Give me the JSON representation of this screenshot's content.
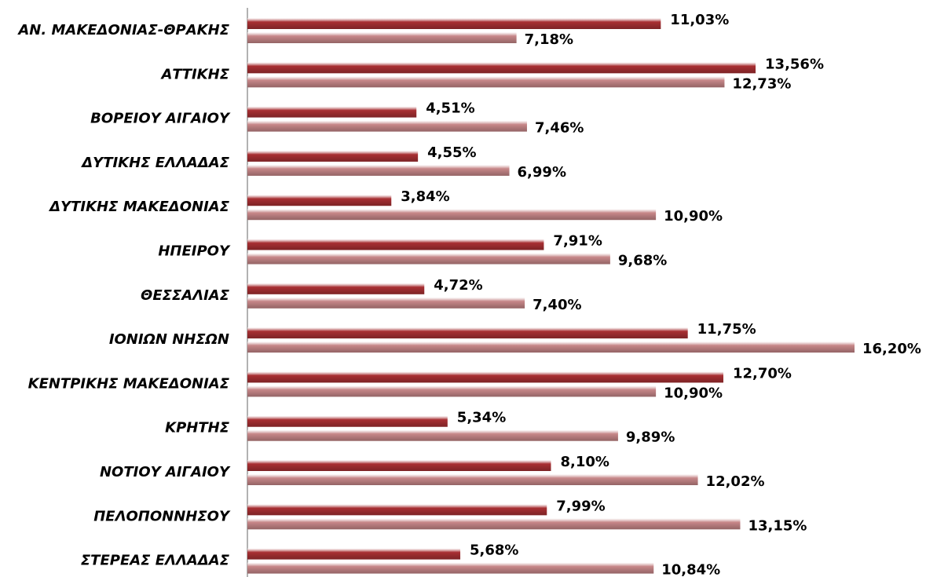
{
  "chart_data": {
    "type": "bar",
    "orientation": "horizontal",
    "categories": [
      "ΑΝ. ΜΑΚΕΔΟΝΙΑΣ-ΘΡΑΚΗΣ",
      "ΑΤΤΙΚΗΣ",
      "ΒΟΡΕΙΟΥ ΑΙΓΑΙΟΥ",
      "ΔΥΤΙΚΗΣ ΕΛΛΑΔΑΣ",
      "ΔΥΤΙΚΗΣ ΜΑΚΕΔΟΝΙΑΣ",
      "ΗΠΕΙΡΟΥ",
      "ΘΕΣΣΑΛΙΑΣ",
      "ΙΟΝΙΩΝ ΝΗΣΩΝ",
      "ΚΕΝΤΡΙΚΗΣ ΜΑΚΕΔΟΝΙΑΣ",
      "ΚΡΗΤΗΣ",
      "ΝΟΤΙΟΥ ΑΙΓΑΙΟΥ",
      "ΠΕΛΟΠΟΝΝΗΣΟΥ",
      "ΣΤΕΡΕΑΣ ΕΛΛΑΔΑΣ"
    ],
    "series": [
      {
        "color": "#c0363a",
        "values": [
          11.03,
          13.56,
          4.51,
          4.55,
          3.84,
          7.91,
          4.72,
          11.75,
          12.7,
          5.34,
          8.1,
          7.99,
          5.68
        ],
        "value_labels": [
          "11,03%",
          "13,56%",
          "4,51%",
          "4,55%",
          "3,84%",
          "7,91%",
          "4,72%",
          "11,75%",
          "12,70%",
          "5,34%",
          "8,10%",
          "7,99%",
          "5,68%"
        ]
      },
      {
        "color": "#e39a9c",
        "values": [
          7.18,
          12.73,
          7.46,
          6.99,
          10.9,
          9.68,
          7.4,
          16.2,
          10.9,
          9.89,
          12.02,
          13.15,
          10.84
        ],
        "value_labels": [
          "7,18%",
          "12,73%",
          "7,46%",
          "6,99%",
          "10,90%",
          "9,68%",
          "7,40%",
          "16,20%",
          "10,90%",
          "9,89%",
          "12,02%",
          "13,15%",
          "10,84%"
        ]
      }
    ]
  }
}
